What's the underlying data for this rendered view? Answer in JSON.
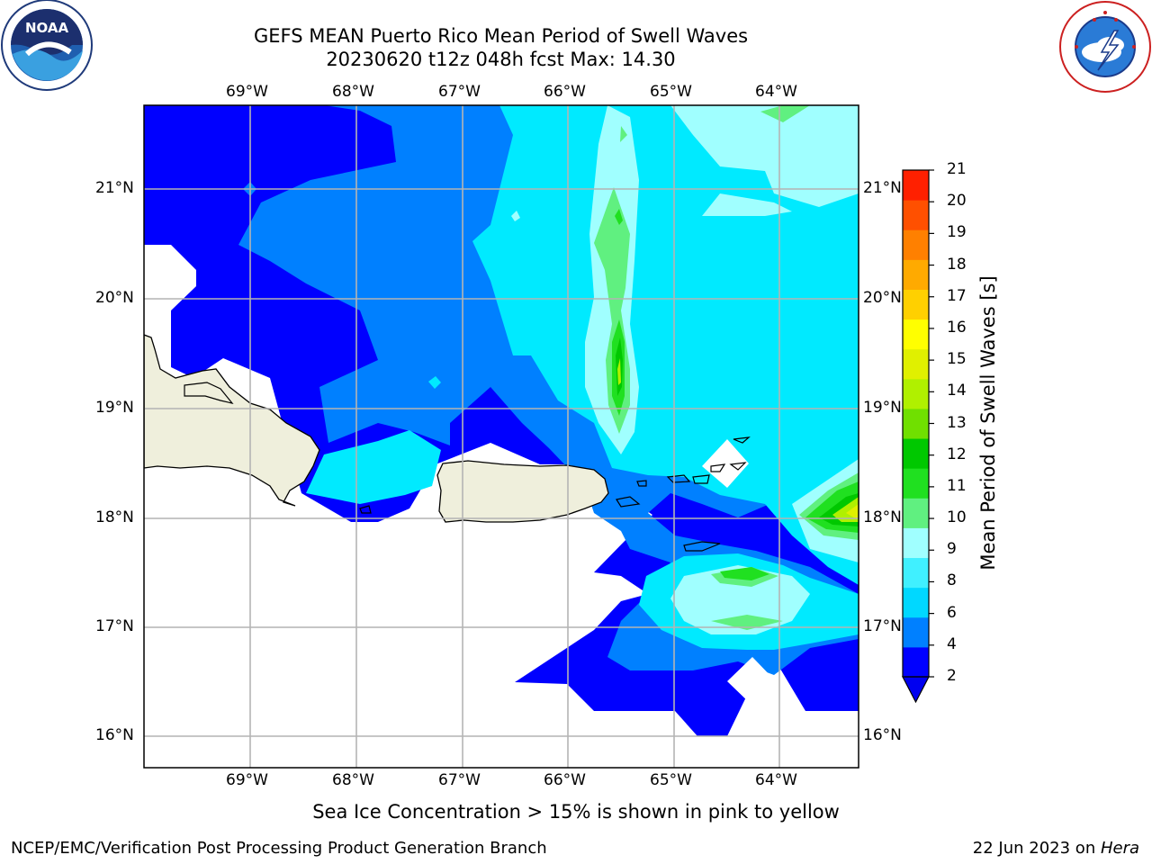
{
  "title_line1": "GEFS MEAN Puerto Rico Mean Period of Swell Waves",
  "title_line2": "20230620 t12z 048h fcst   Max: 14.30",
  "lon_labels": [
    "69°W",
    "68°W",
    "67°W",
    "66°W",
    "65°W",
    "64°W"
  ],
  "lat_labels": [
    "21°N",
    "20°N",
    "19°N",
    "18°N",
    "17°N",
    "16°N"
  ],
  "colorbar": {
    "label": "Mean Period of Swell Waves [s]",
    "ticks": [
      "2",
      "4",
      "6",
      "8",
      "9",
      "10",
      "11",
      "12",
      "13",
      "14",
      "15",
      "16",
      "17",
      "18",
      "19",
      "20",
      "21"
    ],
    "colors": [
      "#0000ff",
      "#0080ff",
      "#00d8ff",
      "#40f0ff",
      "#a0ffff",
      "#60f080",
      "#20e020",
      "#00c800",
      "#70e000",
      "#b0f000",
      "#e0f000",
      "#ffff00",
      "#ffd000",
      "#ffaa00",
      "#ff8000",
      "#ff5000",
      "#ff2000"
    ],
    "under_color": "#0000f0"
  },
  "note": "Sea Ice Concentration > 15% is shown in pink to yellow",
  "footer_left": "NCEP/EMC/Verification Post Processing Product Generation Branch",
  "footer_right_prefix": "22 Jun 2023 on ",
  "footer_right_host": "Hera",
  "land_color": "#efefdc"
}
